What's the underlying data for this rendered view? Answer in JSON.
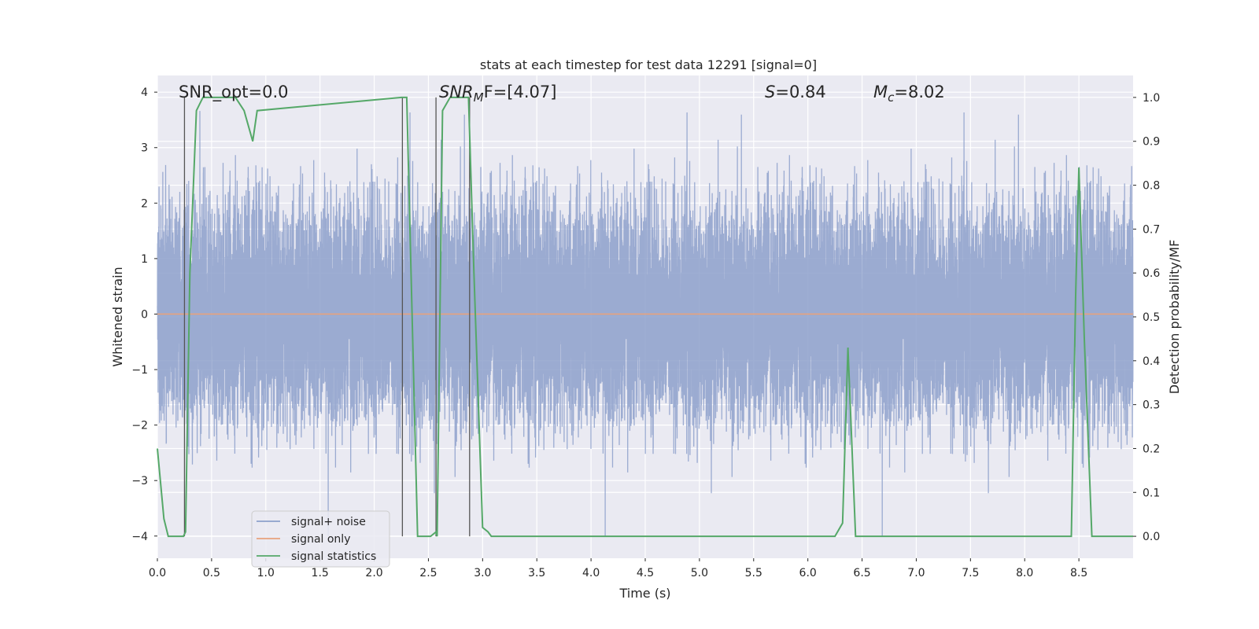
{
  "chart_data": {
    "type": "line",
    "title": "stats at each timestep for test data 12291 [signal=0]",
    "xlabel": "Time (s)",
    "ylabel_left": "Whitened strain",
    "ylabel_right": "Detection probability/MF",
    "xlim": [
      0.0,
      9.0
    ],
    "ylim_left": [
      -4.4,
      4.3
    ],
    "ylim_right": [
      -0.05,
      1.05
    ],
    "grid": true,
    "legend_placement": "lower left",
    "x_ticks": [
      0.0,
      0.5,
      1.0,
      1.5,
      2.0,
      2.5,
      3.0,
      3.5,
      4.0,
      4.5,
      5.0,
      5.5,
      6.0,
      6.5,
      7.0,
      7.5,
      8.0,
      8.5
    ],
    "x_tick_labels": [
      "0.0",
      "0.5",
      "1.0",
      "1.5",
      "2.0",
      "2.5",
      "3.0",
      "3.5",
      "4.0",
      "4.5",
      "5.0",
      "5.5",
      "6.0",
      "6.5",
      "7.0",
      "7.5",
      "8.0",
      "8.5"
    ],
    "y_left_ticks": [
      4,
      3,
      2,
      1,
      0,
      -1,
      -2,
      -3,
      -4
    ],
    "y_left_tick_labels": [
      "4",
      "3",
      "2",
      "1",
      "0",
      "−1",
      "−2",
      "−3",
      "−4"
    ],
    "y_right_ticks": [
      1.0,
      0.9,
      0.8,
      0.7,
      0.6,
      0.5,
      0.4,
      0.3,
      0.2,
      0.1,
      0.0
    ],
    "y_right_tick_labels": [
      "1.0",
      "0.9",
      "0.8",
      "0.7",
      "0.6",
      "0.5",
      "0.4",
      "0.3",
      "0.2",
      "0.1",
      "0.0"
    ],
    "annotations": {
      "snr_opt": "SNR_opt=0.0",
      "snr_mf_main": "SNR",
      "snr_mf_sub": "M",
      "snr_mf_tail": "F=[4.07]",
      "s_main": "S",
      "s_tail": "=0.84",
      "mc_main": "M",
      "mc_sub": "c",
      "mc_tail": "=8.02"
    },
    "vertical_markers_time": [
      0.25,
      2.26,
      2.57,
      2.88
    ],
    "series": [
      {
        "name": "signal+ noise",
        "color": "#8da0cb",
        "axis": "left",
        "sample_rate_hz": 2048,
        "amplitude_std": 0.95,
        "amplitude_range": [
          -4.0,
          3.7
        ]
      },
      {
        "name": "signal only",
        "color": "#e8a27c",
        "axis": "left",
        "values_constant": 0.0
      },
      {
        "name": "signal statistics",
        "color": "#55a868",
        "axis": "right",
        "x": [
          0.0,
          0.06,
          0.1,
          0.24,
          0.26,
          0.3,
          0.36,
          0.42,
          0.72,
          0.8,
          0.88,
          0.92,
          2.25,
          2.3,
          2.37,
          2.4,
          2.52,
          2.57,
          2.58,
          2.63,
          2.7,
          2.77,
          2.87,
          2.92,
          3.0,
          3.05,
          3.08,
          3.12,
          6.25,
          6.32,
          6.37,
          6.44,
          6.5,
          8.43,
          8.47,
          8.5,
          8.55,
          8.62,
          9.0
        ],
        "values": [
          0.2,
          0.04,
          0.0,
          0.0,
          0.01,
          0.6,
          0.97,
          1.0,
          1.0,
          0.97,
          0.9,
          0.97,
          1.0,
          1.0,
          0.3,
          0.0,
          0.0,
          0.01,
          0.0,
          0.97,
          1.0,
          1.0,
          1.0,
          0.6,
          0.02,
          0.01,
          0.0,
          0.0,
          0.0,
          0.03,
          0.43,
          0.0,
          0.0,
          0.0,
          0.55,
          0.84,
          0.45,
          0.0,
          0.0
        ]
      }
    ]
  }
}
